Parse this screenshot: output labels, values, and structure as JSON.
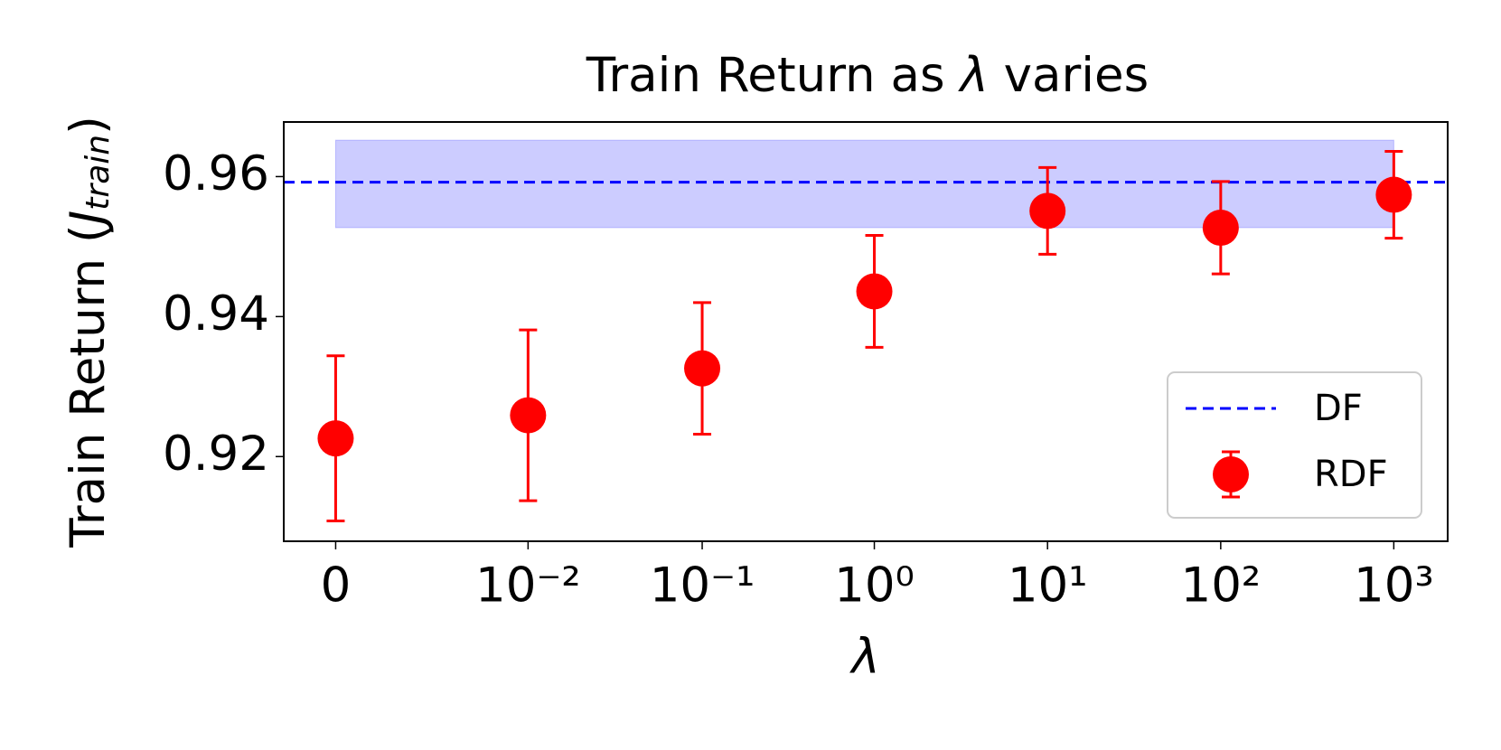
{
  "chart_data": {
    "type": "errorbar",
    "title": [
      "Train Return as ",
      "λ",
      " varies"
    ],
    "xlabel": "λ",
    "ylabel": [
      "Train Return (",
      "J",
      "train",
      ")"
    ],
    "categories": [
      "0",
      "10⁻²",
      "10⁻¹",
      "10⁰",
      "10¹",
      "10²",
      "10³"
    ],
    "ylim": [
      0.9079,
      0.9678
    ],
    "yticks": [
      0.92,
      0.94,
      0.96
    ],
    "legend": "lower right",
    "reference": {
      "name": "DF",
      "color": "#0000ff",
      "value": 0.9592,
      "band": [
        0.9527,
        0.9652
      ],
      "band_color": "#ccccff"
    },
    "series": [
      {
        "name": "RDF",
        "color": "#ff0000",
        "values": [
          0.9226,
          0.9259,
          0.9326,
          0.9436,
          0.9551,
          0.9527,
          0.9574
        ],
        "errors": [
          0.0118,
          0.0122,
          0.0094,
          0.008,
          0.0062,
          0.0066,
          0.0062
        ]
      }
    ]
  }
}
